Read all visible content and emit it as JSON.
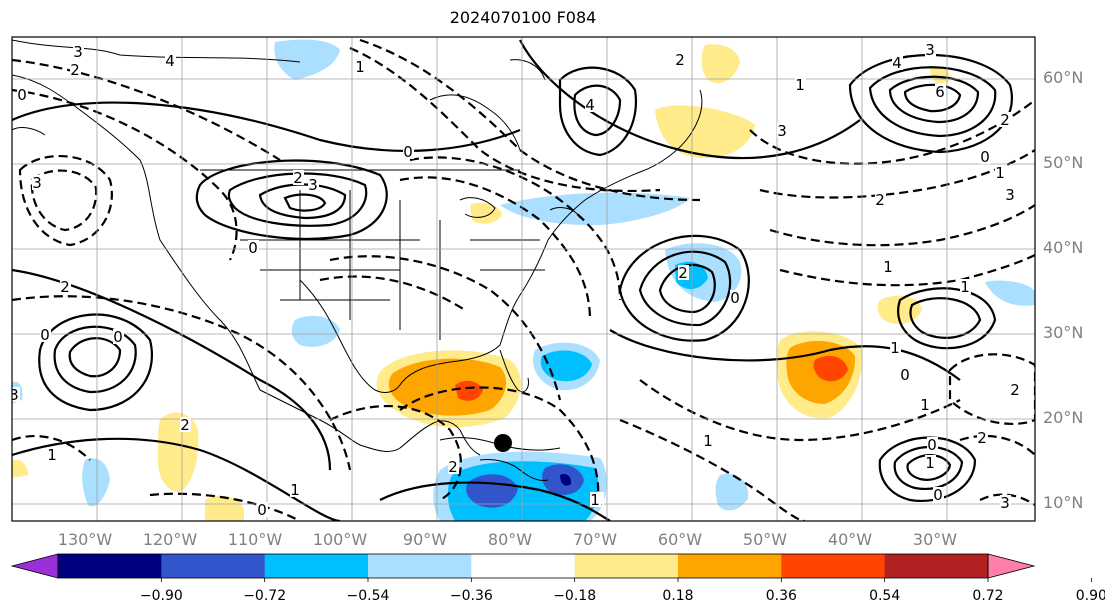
{
  "title": "2024070100 F084",
  "map": {
    "lon_labels": [
      "130°W",
      "120°W",
      "110°W",
      "100°W",
      "90°W",
      "80°W",
      "70°W",
      "60°W",
      "50°W",
      "40°W",
      "30°W"
    ],
    "lat_labels": [
      "60°N",
      "50°N",
      "40°N",
      "30°N",
      "20°N",
      "10°N"
    ],
    "contour_labels": [
      "3",
      "4",
      "1",
      "3",
      "2",
      "3",
      "4",
      "0",
      "2",
      "3",
      "1",
      "2",
      "0",
      "3",
      "4",
      "3",
      "6",
      "2",
      "0",
      "1",
      "2",
      "3",
      "0",
      "2",
      "2",
      "1",
      "0",
      "1",
      "2",
      "1",
      "0",
      "1",
      "2",
      "0",
      "1",
      "3",
      "0",
      "1",
      "2",
      "1",
      "0",
      "0",
      "2",
      "1",
      "0",
      "1",
      "1"
    ],
    "marker": "storm-position-dot"
  },
  "colorbar": {
    "ticks": [
      "−0.90",
      "−0.72",
      "−0.54",
      "−0.36",
      "−0.18",
      "0.18",
      "0.36",
      "0.54",
      "0.72",
      "0.90"
    ],
    "colors": [
      "#9b30d9",
      "#00007f",
      "#3355cc",
      "#00bfff",
      "#aadfff",
      "#ffffff",
      "#ffeb8a",
      "#ffa500",
      "#ff4500",
      "#b22222",
      "#ff7fa8"
    ]
  }
}
